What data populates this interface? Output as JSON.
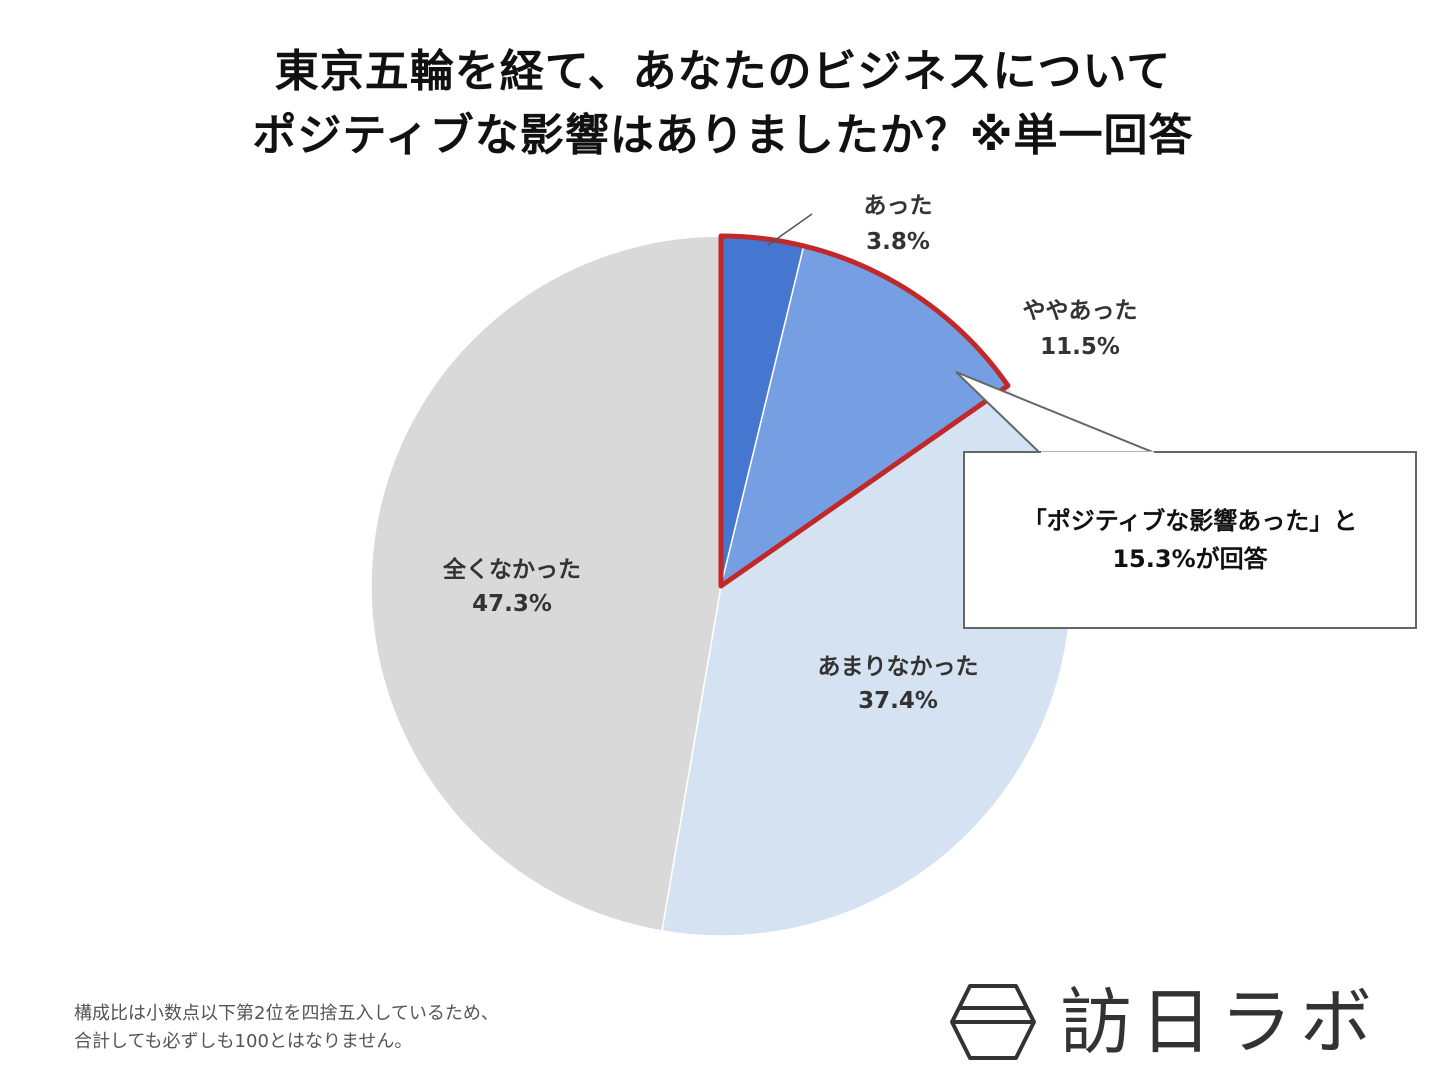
{
  "title": {
    "line1": "東京五輪を経て、あなたのビジネスについて",
    "line2": "ポジティブな影響はありましたか？※単一回答"
  },
  "chart_data": {
    "type": "pie",
    "title": "東京五輪を経て、あなたのビジネスについてポジティブな影響はありましたか？※単一回答",
    "slices": [
      {
        "label": "あった",
        "value": 3.8,
        "display": "3.8%",
        "color": "#4677D0"
      },
      {
        "label": "ややあった",
        "value": 11.5,
        "display": "11.5%",
        "color": "#769FE3"
      },
      {
        "label": "あまりなかった",
        "value": 37.4,
        "display": "37.4%",
        "color": "#D5E2F1"
      },
      {
        "label": "全くなかった",
        "value": 47.3,
        "display": "47.3%",
        "color": "#D9D9D9"
      }
    ],
    "highlight_color": "#C0282A",
    "start_angle": "12 o'clock",
    "direction": "clockwise"
  },
  "callout": {
    "line1": "「ポジティブな影響あった」と",
    "line2": "15.3%が回答"
  },
  "footnote": {
    "line1": "構成比は小数点以下第2位を四捨五入しているため、",
    "line2": "合計しても必ずしも100とはなりません。"
  },
  "logo": {
    "text": "訪日ラボ",
    "icon": "hexagon-logo-icon"
  }
}
